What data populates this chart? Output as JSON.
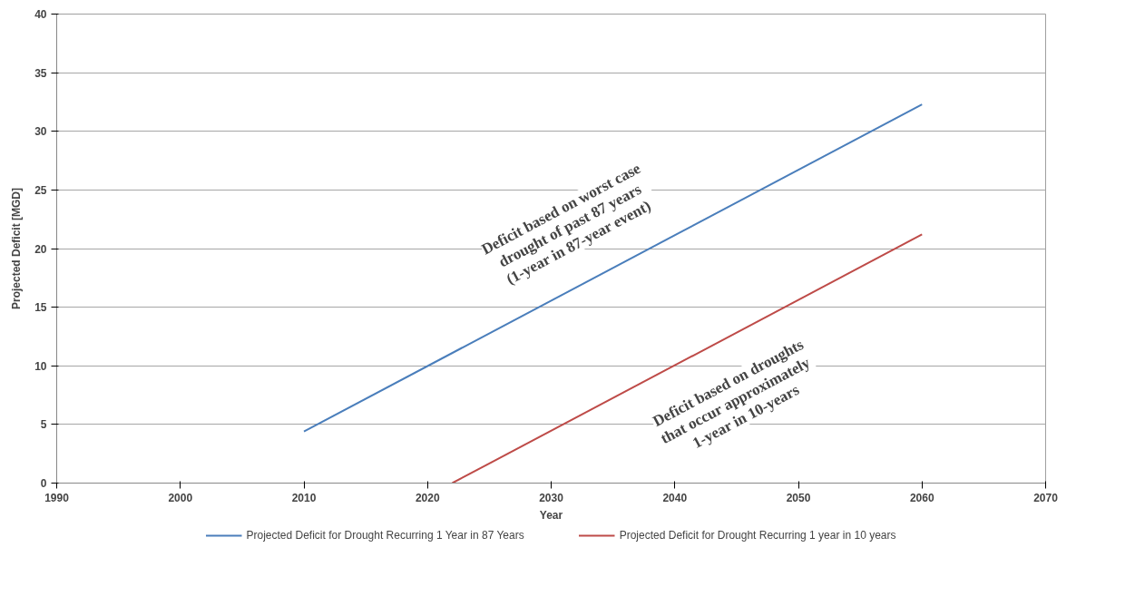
{
  "chart_data": {
    "type": "line",
    "xlabel": "Year",
    "ylabel": "Projected Deficit [MGD]",
    "xlim": [
      1990,
      2070
    ],
    "xticks": [
      1990,
      2000,
      2010,
      2020,
      2030,
      2040,
      2050,
      2060,
      2070
    ],
    "ylim": [
      0,
      40
    ],
    "yticks": [
      0,
      5,
      10,
      15,
      20,
      25,
      30,
      35,
      40
    ],
    "grid": "y",
    "legend": "bottom",
    "marker": "none",
    "line_style": "solid",
    "series": [
      {
        "name": "Projected Deficit for Drought Recurring 1 Year in 87 Years",
        "color": "#4a7ebb",
        "x": [
          2010,
          2060
        ],
        "values": [
          4.4,
          32.3
        ]
      },
      {
        "name": "Projected Deficit for Drought Recurring 1 year in 10 years",
        "color": "#be4b48",
        "x": [
          2022,
          2060
        ],
        "values": [
          0,
          21.2
        ]
      }
    ],
    "annotations": [
      "Deficit based on worst case\ndrought of past 87 years\n(1-year in 87-year event)",
      "Deficit based on droughts\nthat occur  approximately\n1-year in 10-years"
    ]
  }
}
